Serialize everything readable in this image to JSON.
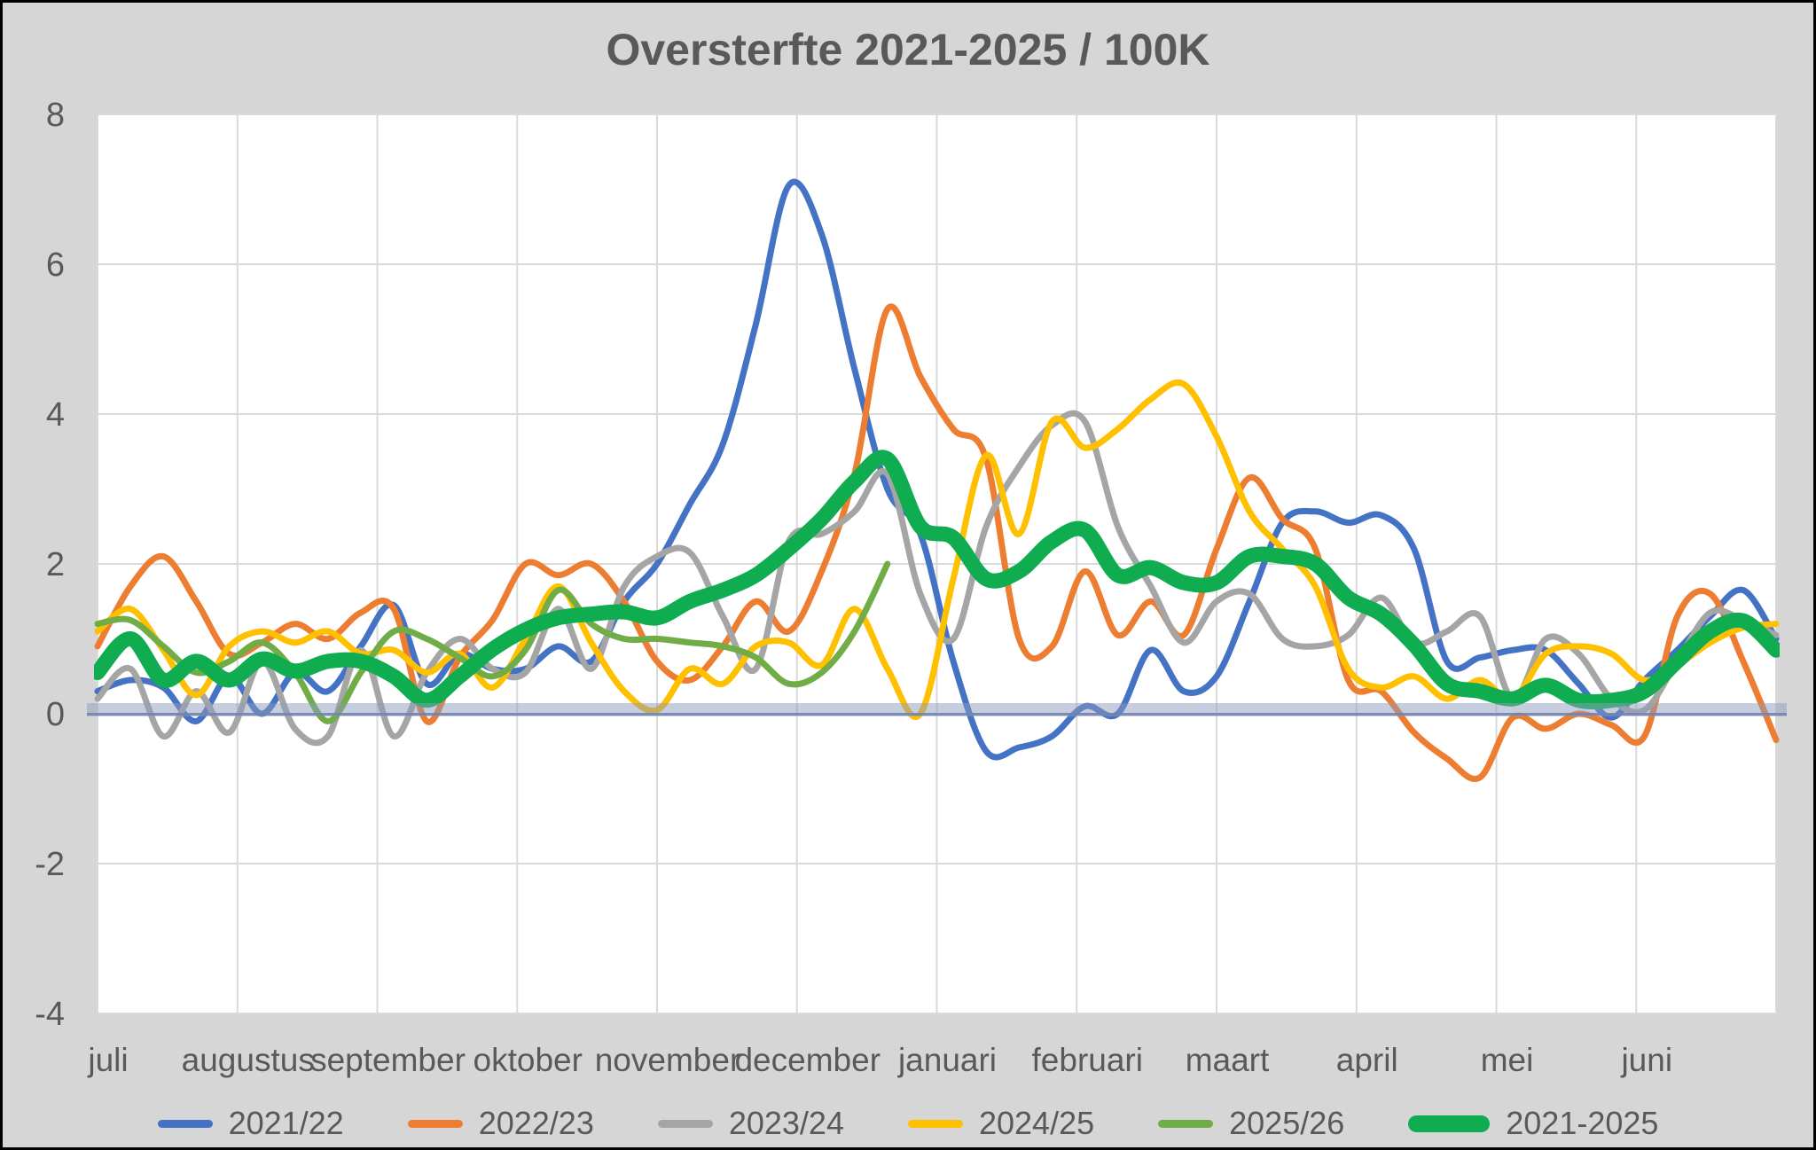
{
  "title": "Oversterfte 2021-2025 / 100K",
  "colors": {
    "background": "#D6D6D6",
    "plot_background": "#FFFFFF",
    "grid": "#DADADA",
    "text": "#595959",
    "zero_band_fill": "rgba(140,155,190,0.50)",
    "zero_band_line": "rgba(113,131,173,0.85)"
  },
  "chart_data": {
    "type": "line",
    "title": "Oversterfte 2021-2025 / 100K",
    "xlabel": "",
    "ylabel": "",
    "x_months": [
      "juli",
      "augustus",
      "september",
      "oktober",
      "november",
      "december",
      "januari",
      "februari",
      "maart",
      "april",
      "mei",
      "juni"
    ],
    "x_weeks_per_season": 52,
    "ylim": [
      -4,
      8
    ],
    "yticks": [
      8,
      6,
      4,
      2,
      0,
      -2,
      -4
    ],
    "grid": true,
    "legend_position": "bottom",
    "zero_highlight_band": true,
    "series": [
      {
        "name": "2021/22",
        "color": "#4472C4",
        "thick": false,
        "values": [
          0.3,
          0.45,
          0.35,
          -0.1,
          0.5,
          0.0,
          0.55,
          0.3,
          0.9,
          1.45,
          0.4,
          0.8,
          0.6,
          0.6,
          0.9,
          0.7,
          1.5,
          2.0,
          2.8,
          3.6,
          5.2,
          7.05,
          6.4,
          4.6,
          3.0,
          2.4,
          0.7,
          -0.5,
          -0.45,
          -0.3,
          0.1,
          0.0,
          0.85,
          0.3,
          0.5,
          1.5,
          2.55,
          2.7,
          2.55,
          2.65,
          2.2,
          0.7,
          0.75,
          0.85,
          0.85,
          0.4,
          -0.05,
          0.45,
          0.85,
          1.3,
          1.65,
          1.0
        ]
      },
      {
        "name": "2022/23",
        "color": "#ED7D31",
        "thick": false,
        "values": [
          0.9,
          1.7,
          2.1,
          1.5,
          0.8,
          0.95,
          1.2,
          1.0,
          1.35,
          1.4,
          -0.1,
          0.75,
          1.25,
          2.0,
          1.85,
          2.0,
          1.5,
          0.7,
          0.45,
          0.9,
          1.5,
          1.1,
          1.9,
          3.2,
          5.4,
          4.5,
          3.8,
          3.4,
          1.0,
          0.9,
          1.9,
          1.05,
          1.5,
          1.05,
          2.2,
          3.15,
          2.6,
          2.2,
          0.45,
          0.3,
          -0.25,
          -0.6,
          -0.85,
          -0.05,
          -0.2,
          0.0,
          -0.15,
          -0.3,
          1.3,
          1.6,
          0.7,
          -0.35
        ]
      },
      {
        "name": "2023/24",
        "color": "#A5A5A5",
        "thick": false,
        "values": [
          0.2,
          0.6,
          -0.3,
          0.3,
          -0.25,
          0.7,
          -0.2,
          -0.3,
          0.85,
          -0.3,
          0.55,
          1.0,
          0.6,
          0.55,
          1.4,
          0.6,
          1.7,
          2.1,
          2.15,
          1.3,
          0.6,
          2.3,
          2.4,
          2.7,
          3.2,
          1.6,
          1.0,
          2.5,
          3.3,
          3.85,
          3.9,
          2.5,
          1.7,
          0.95,
          1.5,
          1.6,
          1.0,
          0.9,
          1.05,
          1.55,
          0.95,
          1.1,
          1.3,
          0.2,
          1.0,
          0.8,
          0.2,
          0.05,
          0.7,
          1.35,
          1.25,
          1.05
        ]
      },
      {
        "name": "2024/25",
        "color": "#FFC000",
        "thick": false,
        "values": [
          1.1,
          1.4,
          0.85,
          0.25,
          0.9,
          1.1,
          0.95,
          1.1,
          0.8,
          0.85,
          0.55,
          0.8,
          0.35,
          1.0,
          1.7,
          0.95,
          0.3,
          0.05,
          0.6,
          0.4,
          0.9,
          0.95,
          0.65,
          1.4,
          0.6,
          0.0,
          1.8,
          3.45,
          2.4,
          3.9,
          3.55,
          3.8,
          4.2,
          4.4,
          3.7,
          2.7,
          2.2,
          1.7,
          0.6,
          0.35,
          0.5,
          0.2,
          0.45,
          0.2,
          0.8,
          0.9,
          0.8,
          0.45,
          0.65,
          0.95,
          1.15,
          1.2
        ]
      },
      {
        "name": "2025/26",
        "color": "#70AD47",
        "thick": false,
        "values": [
          1.2,
          1.25,
          0.9,
          0.55,
          0.7,
          0.95,
          0.55,
          -0.1,
          0.55,
          1.1,
          1.0,
          0.75,
          0.5,
          0.85,
          1.65,
          1.2,
          1.0,
          1.0,
          0.95,
          0.9,
          0.75,
          0.4,
          0.55,
          1.1,
          2.0
        ]
      },
      {
        "name": "2021-2025",
        "color": "#10AC50",
        "thick": true,
        "values": [
          0.55,
          1.0,
          0.45,
          0.7,
          0.45,
          0.73,
          0.57,
          0.7,
          0.7,
          0.5,
          0.18,
          0.5,
          0.86,
          1.12,
          1.28,
          1.33,
          1.36,
          1.28,
          1.5,
          1.65,
          1.85,
          2.2,
          2.6,
          3.1,
          3.4,
          2.5,
          2.35,
          1.8,
          1.9,
          2.3,
          2.45,
          1.85,
          1.95,
          1.75,
          1.75,
          2.1,
          2.1,
          2.0,
          1.55,
          1.33,
          0.92,
          0.4,
          0.3,
          0.2,
          0.38,
          0.18,
          0.18,
          0.3,
          0.7,
          1.1,
          1.24,
          0.85
        ]
      }
    ]
  }
}
